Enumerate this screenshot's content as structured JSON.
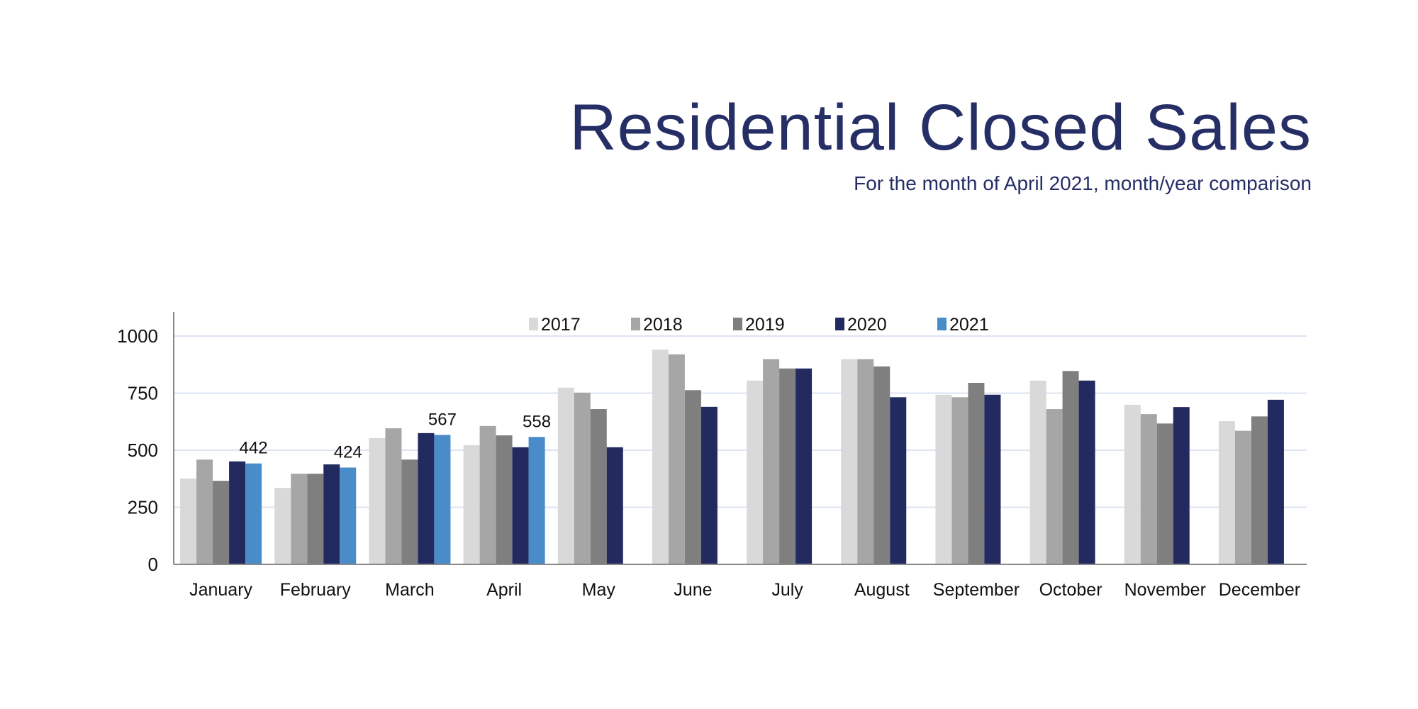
{
  "chart_data": {
    "type": "bar",
    "title": "Residential Closed Sales",
    "subtitle": "For the month of April 2021, month/year comparison",
    "xlabel": "",
    "ylabel": "",
    "ylim": [
      0,
      1100
    ],
    "yticks": [
      0,
      250,
      500,
      750,
      1000
    ],
    "grid": true,
    "legend": "top",
    "categories": [
      "January",
      "February",
      "March",
      "April",
      "May",
      "June",
      "July",
      "August",
      "September",
      "October",
      "November",
      "December"
    ],
    "series": [
      {
        "name": "2017",
        "color": "#d9d9d9",
        "values": [
          376,
          335,
          553,
          522,
          774,
          941,
          805,
          899,
          743,
          805,
          699,
          627
        ]
      },
      {
        "name": "2018",
        "color": "#a6a6a6",
        "values": [
          459,
          397,
          596,
          606,
          752,
          920,
          899,
          899,
          732,
          680,
          658,
          585
        ]
      },
      {
        "name": "2019",
        "color": "#7f7f7f",
        "values": [
          366,
          397,
          459,
          565,
          680,
          763,
          858,
          867,
          795,
          847,
          617,
          648
        ]
      },
      {
        "name": "2020",
        "color": "#222a60",
        "values": [
          451,
          438,
          575,
          513,
          513,
          690,
          858,
          732,
          743,
          805,
          689,
          721
        ]
      },
      {
        "name": "2021",
        "color": "#4a8bc9",
        "values": [
          442,
          424,
          567,
          558,
          null,
          null,
          null,
          null,
          null,
          null,
          null,
          null
        ],
        "data_labels": [
          "442",
          "424",
          "567",
          "558"
        ]
      }
    ]
  }
}
